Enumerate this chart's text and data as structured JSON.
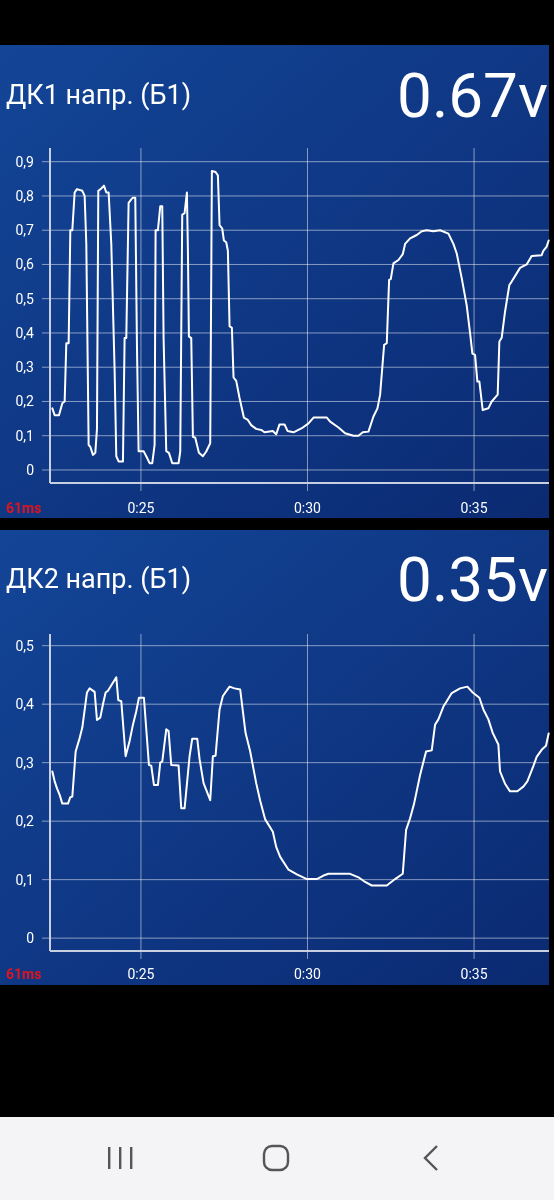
{
  "chart_data": [
    {
      "type": "line",
      "title": "ДК1 напр. (Б1)",
      "subtitle": "0.67v",
      "annotations": [
        "61ms"
      ],
      "grid": true,
      "xlim": [
        22.27,
        37.25
      ],
      "xticks": [
        {
          "value": 25,
          "label": "0:25"
        },
        {
          "value": 30,
          "label": "0:30"
        },
        {
          "value": 35,
          "label": "0:35"
        }
      ],
      "ylim": [
        -0.038,
        0.94
      ],
      "yticks": [
        0,
        {
          "value": 0.1,
          "label": "0,1"
        },
        {
          "value": 0.2,
          "label": "0,2"
        },
        {
          "value": 0.3,
          "label": "0,3"
        },
        {
          "value": 0.4,
          "label": "0,4"
        },
        {
          "value": 0.5,
          "label": "0,5"
        },
        {
          "value": 0.6,
          "label": "0,6"
        },
        {
          "value": 0.7,
          "label": "0,7"
        },
        {
          "value": 0.8,
          "label": "0,8"
        },
        {
          "value": 0.9,
          "label": "0,9"
        }
      ],
      "series": [
        {
          "color": "#ffffff",
          "x": [
            22.34,
            22.41,
            22.54,
            22.64,
            22.71,
            22.76,
            22.83,
            22.88,
            22.94,
            23.01,
            23.08,
            23.24,
            23.31,
            23.36,
            23.43,
            23.48,
            23.56,
            23.63,
            23.68,
            23.72,
            23.79,
            23.89,
            23.96,
            24.03,
            24.11,
            24.21,
            24.26,
            24.33,
            24.46,
            24.51,
            24.56,
            24.63,
            24.71,
            24.76,
            24.83,
            24.88,
            24.93,
            25.08,
            25.16,
            25.26,
            25.34,
            25.41,
            25.44,
            25.51,
            25.58,
            25.64,
            25.68,
            25.76,
            25.84,
            25.94,
            26.13,
            26.18,
            26.24,
            26.31,
            26.38,
            26.41,
            26.44,
            26.51,
            26.56,
            26.63,
            26.74,
            26.86,
            26.96,
            27.08,
            27.13,
            27.24,
            27.31,
            27.36,
            27.44,
            27.49,
            27.56,
            27.61,
            27.66,
            27.73,
            27.78,
            27.86,
            27.96,
            28.09,
            28.21,
            28.31,
            28.46,
            28.61,
            28.71,
            28.96,
            29.06,
            29.16,
            29.31,
            29.4,
            29.58,
            29.83,
            30.03,
            30.18,
            30.58,
            30.68,
            30.93,
            31.13,
            31.38,
            31.53,
            31.66,
            31.83,
            31.98,
            32.1,
            32.18,
            32.3,
            32.38,
            32.45,
            32.5,
            32.58,
            32.73,
            32.86,
            32.93,
            33.08,
            33.28,
            33.43,
            33.58,
            33.78,
            33.98,
            34.23,
            34.38,
            34.48,
            34.63,
            34.78,
            34.88,
            34.95,
            35.03,
            35.1,
            35.16,
            35.26,
            35.43,
            35.53,
            35.71,
            35.76,
            35.83,
            35.93,
            36.06,
            36.13,
            36.28,
            36.38,
            36.58,
            36.73,
            37.03,
            37.08,
            37.18,
            37.24
          ],
          "values": [
            0.18,
            0.16,
            0.16,
            0.195,
            0.2,
            0.37,
            0.37,
            0.7,
            0.7,
            0.81,
            0.82,
            0.815,
            0.8,
            0.66,
            0.073,
            0.068,
            0.044,
            0.05,
            0.12,
            0.815,
            0.82,
            0.83,
            0.81,
            0.81,
            0.66,
            0.29,
            0.04,
            0.025,
            0.025,
            0.385,
            0.385,
            0.78,
            0.79,
            0.795,
            0.795,
            0.365,
            0.055,
            0.055,
            0.04,
            0.02,
            0.02,
            0.073,
            0.7,
            0.7,
            0.77,
            0.77,
            0.385,
            0.055,
            0.05,
            0.02,
            0.02,
            0.054,
            0.745,
            0.75,
            0.81,
            0.64,
            0.39,
            0.385,
            0.097,
            0.094,
            0.05,
            0.04,
            0.054,
            0.078,
            0.873,
            0.87,
            0.86,
            0.715,
            0.705,
            0.67,
            0.665,
            0.64,
            0.42,
            0.415,
            0.27,
            0.26,
            0.21,
            0.153,
            0.146,
            0.131,
            0.12,
            0.117,
            0.11,
            0.114,
            0.104,
            0.133,
            0.133,
            0.114,
            0.11,
            0.122,
            0.136,
            0.153,
            0.153,
            0.141,
            0.124,
            0.107,
            0.1,
            0.1,
            0.11,
            0.112,
            0.156,
            0.18,
            0.22,
            0.365,
            0.37,
            0.555,
            0.557,
            0.603,
            0.613,
            0.63,
            0.66,
            0.676,
            0.686,
            0.697,
            0.7,
            0.697,
            0.7,
            0.69,
            0.66,
            0.632,
            0.56,
            0.48,
            0.4,
            0.34,
            0.336,
            0.258,
            0.258,
            0.175,
            0.18,
            0.2,
            0.22,
            0.375,
            0.386,
            0.462,
            0.54,
            0.55,
            0.574,
            0.59,
            0.6,
            0.625,
            0.627,
            0.64,
            0.652,
            0.67
          ]
        }
      ]
    },
    {
      "type": "line",
      "title": "ДК2 напр. (Б1)",
      "subtitle": "0.35v",
      "annotations": [
        "61ms"
      ],
      "grid": true,
      "xlim": [
        22.27,
        37.25
      ],
      "xticks": [
        {
          "value": 25,
          "label": "0:25"
        },
        {
          "value": 30,
          "label": "0:30"
        },
        {
          "value": 35,
          "label": "0:35"
        }
      ],
      "ylim": [
        -0.022,
        0.52
      ],
      "yticks": [
        0,
        {
          "value": 0.1,
          "label": "0,1"
        },
        {
          "value": 0.2,
          "label": "0,2"
        },
        {
          "value": 0.3,
          "label": "0,3"
        },
        {
          "value": 0.4,
          "label": "0,4"
        },
        {
          "value": 0.5,
          "label": "0,5"
        }
      ],
      "series": [
        {
          "color": "#ffffff",
          "x": [
            22.34,
            22.41,
            22.48,
            22.56,
            22.64,
            22.81,
            22.88,
            22.94,
            23.04,
            23.16,
            23.24,
            23.38,
            23.46,
            23.61,
            23.68,
            23.78,
            23.86,
            23.94,
            24.01,
            24.26,
            24.32,
            24.41,
            24.54,
            24.66,
            24.76,
            24.86,
            24.94,
            25.09,
            25.24,
            25.31,
            25.39,
            25.51,
            25.58,
            25.64,
            25.76,
            25.83,
            25.91,
            26.13,
            26.21,
            26.31,
            26.46,
            26.54,
            26.69,
            26.76,
            26.88,
            27.08,
            27.16,
            27.24,
            27.36,
            27.46,
            27.66,
            27.81,
            27.98,
            28.14,
            28.28,
            28.46,
            28.58,
            28.73,
            28.96,
            29.06,
            29.18,
            29.43,
            29.68,
            29.98,
            30.28,
            30.48,
            30.63,
            31.28,
            31.53,
            31.73,
            31.93,
            32.38,
            32.63,
            32.86,
            32.96,
            33.08,
            33.2,
            33.38,
            33.56,
            33.73,
            33.83,
            33.93,
            34.08,
            34.18,
            34.33,
            34.58,
            34.8,
            34.96,
            35.16,
            35.28,
            35.43,
            35.56,
            35.73,
            35.78,
            35.93,
            36.08,
            36.3,
            36.48,
            36.6,
            36.78,
            36.88,
            37.03,
            37.16,
            37.24
          ],
          "values": [
            0.285,
            0.268,
            0.256,
            0.245,
            0.23,
            0.23,
            0.241,
            0.242,
            0.319,
            0.342,
            0.36,
            0.42,
            0.427,
            0.421,
            0.373,
            0.377,
            0.4,
            0.42,
            0.423,
            0.446,
            0.407,
            0.405,
            0.311,
            0.337,
            0.365,
            0.388,
            0.411,
            0.411,
            0.296,
            0.295,
            0.262,
            0.262,
            0.3,
            0.302,
            0.357,
            0.354,
            0.296,
            0.295,
            0.222,
            0.222,
            0.311,
            0.341,
            0.341,
            0.306,
            0.265,
            0.236,
            0.311,
            0.312,
            0.391,
            0.414,
            0.43,
            0.427,
            0.425,
            0.351,
            0.319,
            0.265,
            0.235,
            0.203,
            0.182,
            0.156,
            0.139,
            0.117,
            0.109,
            0.101,
            0.101,
            0.107,
            0.11,
            0.11,
            0.104,
            0.096,
            0.09,
            0.09,
            0.101,
            0.11,
            0.185,
            0.205,
            0.23,
            0.279,
            0.319,
            0.321,
            0.365,
            0.374,
            0.396,
            0.405,
            0.419,
            0.427,
            0.43,
            0.42,
            0.411,
            0.391,
            0.374,
            0.351,
            0.331,
            0.285,
            0.264,
            0.251,
            0.251,
            0.259,
            0.268,
            0.294,
            0.31,
            0.322,
            0.329,
            0.35
          ]
        }
      ]
    }
  ]
}
